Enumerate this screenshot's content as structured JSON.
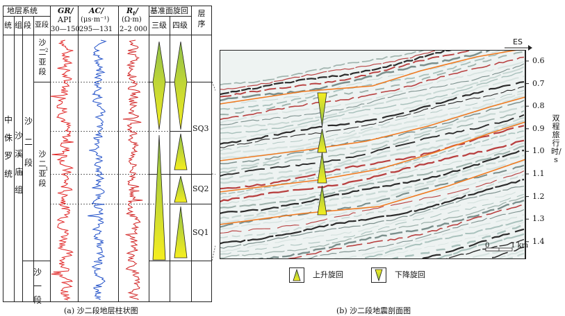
{
  "left_panel": {
    "header": {
      "stratigraphy_system": "地层系统",
      "col_system": "统",
      "col_group": "组",
      "col_member": "段",
      "col_submember": "亚段",
      "gr_title": "GR/",
      "gr_unit": "API",
      "gr_range": "30—150",
      "ac_title": "AC/",
      "ac_unit": "(μs·m⁻¹)",
      "ac_range": "295—131",
      "r_title": "R",
      "r_sub": "t",
      "r_slash": "/",
      "r_unit": "(Ω·m)",
      "r_range": "2–2 000",
      "base_level_cycle": "基准面旋回",
      "third_order": "三级",
      "fourth_order": "四级",
      "sequence": "层序"
    },
    "strat": {
      "series": "中 统",
      "formation": "沙溪庙组",
      "member_sha2": "沙 二 段",
      "member_sha1": "沙 一 段",
      "sub2": "沙二亚段",
      "sub2_index": "2",
      "sub1": "沙二亚段",
      "sub1_index": "1",
      "series_full": "中侏罗统"
    },
    "sequences": [
      "SQ3",
      "SQ2",
      "SQ1"
    ],
    "caption": "(a) 沙二段地层柱状图"
  },
  "right_panel": {
    "direction": "ES",
    "axis_label": "双程旅行时/s",
    "ticks": [
      "0.6",
      "0.7",
      "0.8",
      "0.9",
      "1.0",
      "1.1",
      "1.2",
      "1.3",
      "1.4"
    ],
    "scale_start": "0",
    "scale_end": "1 km",
    "caption": "(b) 沙二段地震剖面图"
  },
  "legend": {
    "rising": "上升旋回",
    "falling": "下降旋回"
  },
  "colors": {
    "gr": "#e02020",
    "ac": "#1f4fc8",
    "rt": "#d02020",
    "horizon": "#f07a20",
    "triangle_top": "#f5ee20",
    "triangle_bottom": "#8fc04a"
  }
}
